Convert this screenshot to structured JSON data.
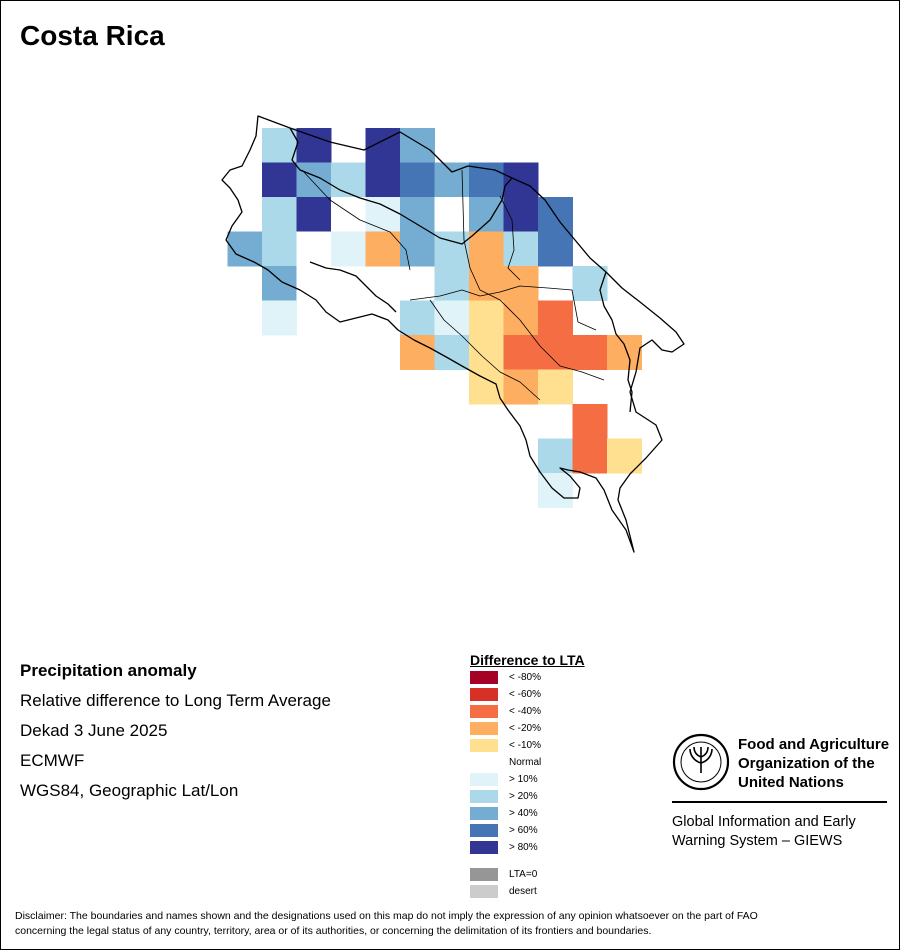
{
  "title": "Costa Rica",
  "info": {
    "product": "Precipitation anomaly",
    "measure": "Relative difference to Long Term Average",
    "period": "Dekad 3 June 2025",
    "source": "ECMWF",
    "projection": "WGS84, Geographic Lat/Lon"
  },
  "legend": {
    "title": "Difference to LTA",
    "items": [
      {
        "label": "< -80%",
        "color": "#a50026"
      },
      {
        "label": "< -60%",
        "color": "#d73027"
      },
      {
        "label": "< -40%",
        "color": "#f46d43"
      },
      {
        "label": "< -20%",
        "color": "#fdae61"
      },
      {
        "label": "< -10%",
        "color": "#fee090"
      },
      {
        "label": "Normal",
        "color": "#ffffff"
      },
      {
        "label": "> 10%",
        "color": "#e0f3f8"
      },
      {
        "label": "> 20%",
        "color": "#abd9e9"
      },
      {
        "label": "> 40%",
        "color": "#74add1"
      },
      {
        "label": "> 60%",
        "color": "#4575b4"
      },
      {
        "label": "> 80%",
        "color": "#313695"
      }
    ],
    "extra": [
      {
        "label": "LTA=0",
        "color": "#969696"
      },
      {
        "label": "desert",
        "color": "#cccccc"
      }
    ]
  },
  "fao": {
    "name_line1": "Food and Agriculture",
    "name_line2": "Organization of the",
    "name_line3": "United Nations",
    "giews_line1": "Global Information and Early",
    "giews_line2": "Warning System – GIEWS"
  },
  "disclaimer": {
    "line1": "Disclaimer: The boundaries and names shown and the designations used on this map do not imply the expression of any opinion whatsoever on the part of FAO",
    "line2": "concerning the legal status of any country, territory, area or of its authorities, or concerning the delimitation of its frontiers and boundaries."
  },
  "map_cells": [
    {
      "col": 0,
      "row": 0,
      "class": "> 20%"
    },
    {
      "col": 1,
      "row": 0,
      "class": "> 80%"
    },
    {
      "col": 3,
      "row": 0,
      "class": "> 80%"
    },
    {
      "col": 4,
      "row": 0,
      "class": "> 40%"
    },
    {
      "col": 0,
      "row": 1,
      "class": "> 80%"
    },
    {
      "col": 1,
      "row": 1,
      "class": "> 40%"
    },
    {
      "col": 2,
      "row": 1,
      "class": "> 20%"
    },
    {
      "col": 3,
      "row": 1,
      "class": "> 80%"
    },
    {
      "col": 4,
      "row": 1,
      "class": "> 60%"
    },
    {
      "col": 5,
      "row": 1,
      "class": "> 40%"
    },
    {
      "col": 6,
      "row": 1,
      "class": "> 60%"
    },
    {
      "col": 7,
      "row": 1,
      "class": "> 80%"
    },
    {
      "col": 0,
      "row": 2,
      "class": "> 20%"
    },
    {
      "col": 1,
      "row": 2,
      "class": "> 80%"
    },
    {
      "col": 2,
      "row": 2,
      "class": "Normal"
    },
    {
      "col": 3,
      "row": 2,
      "class": "> 10%"
    },
    {
      "col": 4,
      "row": 2,
      "class": "> 40%"
    },
    {
      "col": 5,
      "row": 2,
      "class": "Normal"
    },
    {
      "col": 6,
      "row": 2,
      "class": "> 40%"
    },
    {
      "col": 7,
      "row": 2,
      "class": "> 80%"
    },
    {
      "col": 8,
      "row": 2,
      "class": "> 60%"
    },
    {
      "col": -1,
      "row": 3,
      "class": "> 40%"
    },
    {
      "col": 0,
      "row": 3,
      "class": "> 20%"
    },
    {
      "col": 1,
      "row": 3,
      "class": "Normal"
    },
    {
      "col": 2,
      "row": 3,
      "class": "> 10%"
    },
    {
      "col": 3,
      "row": 3,
      "class": "< -20%"
    },
    {
      "col": 4,
      "row": 3,
      "class": "> 40%"
    },
    {
      "col": 5,
      "row": 3,
      "class": "> 20%"
    },
    {
      "col": 6,
      "row": 3,
      "class": "< -20%"
    },
    {
      "col": 7,
      "row": 3,
      "class": "> 20%"
    },
    {
      "col": 8,
      "row": 3,
      "class": "> 60%"
    },
    {
      "col": 0,
      "row": 4,
      "class": "> 40%"
    },
    {
      "col": 1,
      "row": 4,
      "class": "Normal"
    },
    {
      "col": 5,
      "row": 4,
      "class": "> 20%"
    },
    {
      "col": 6,
      "row": 4,
      "class": "< -20%"
    },
    {
      "col": 7,
      "row": 4,
      "class": "< -20%"
    },
    {
      "col": 9,
      "row": 4,
      "class": "> 20%"
    },
    {
      "col": 0,
      "row": 5,
      "class": "> 10%"
    },
    {
      "col": 4,
      "row": 5,
      "class": "> 20%"
    },
    {
      "col": 5,
      "row": 5,
      "class": "> 10%"
    },
    {
      "col": 6,
      "row": 5,
      "class": "< -10%"
    },
    {
      "col": 7,
      "row": 5,
      "class": "< -20%"
    },
    {
      "col": 8,
      "row": 5,
      "class": "< -40%"
    },
    {
      "col": 4,
      "row": 6,
      "class": "< -20%"
    },
    {
      "col": 5,
      "row": 6,
      "class": "> 20%"
    },
    {
      "col": 6,
      "row": 6,
      "class": "< -10%"
    },
    {
      "col": 7,
      "row": 6,
      "class": "< -40%"
    },
    {
      "col": 8,
      "row": 6,
      "class": "< -40%"
    },
    {
      "col": 9,
      "row": 6,
      "class": "< -40%"
    },
    {
      "col": 10,
      "row": 6,
      "class": "< -20%"
    },
    {
      "col": 6,
      "row": 7,
      "class": "< -10%"
    },
    {
      "col": 7,
      "row": 7,
      "class": "< -20%"
    },
    {
      "col": 8,
      "row": 7,
      "class": "< -10%"
    },
    {
      "col": 9,
      "row": 8,
      "class": "< -40%"
    },
    {
      "col": 8,
      "row": 9,
      "class": "> 20%"
    },
    {
      "col": 9,
      "row": 9,
      "class": "< -40%"
    },
    {
      "col": 10,
      "row": 9,
      "class": "< -10%"
    },
    {
      "col": 8,
      "row": 10,
      "class": "> 10%"
    }
  ]
}
